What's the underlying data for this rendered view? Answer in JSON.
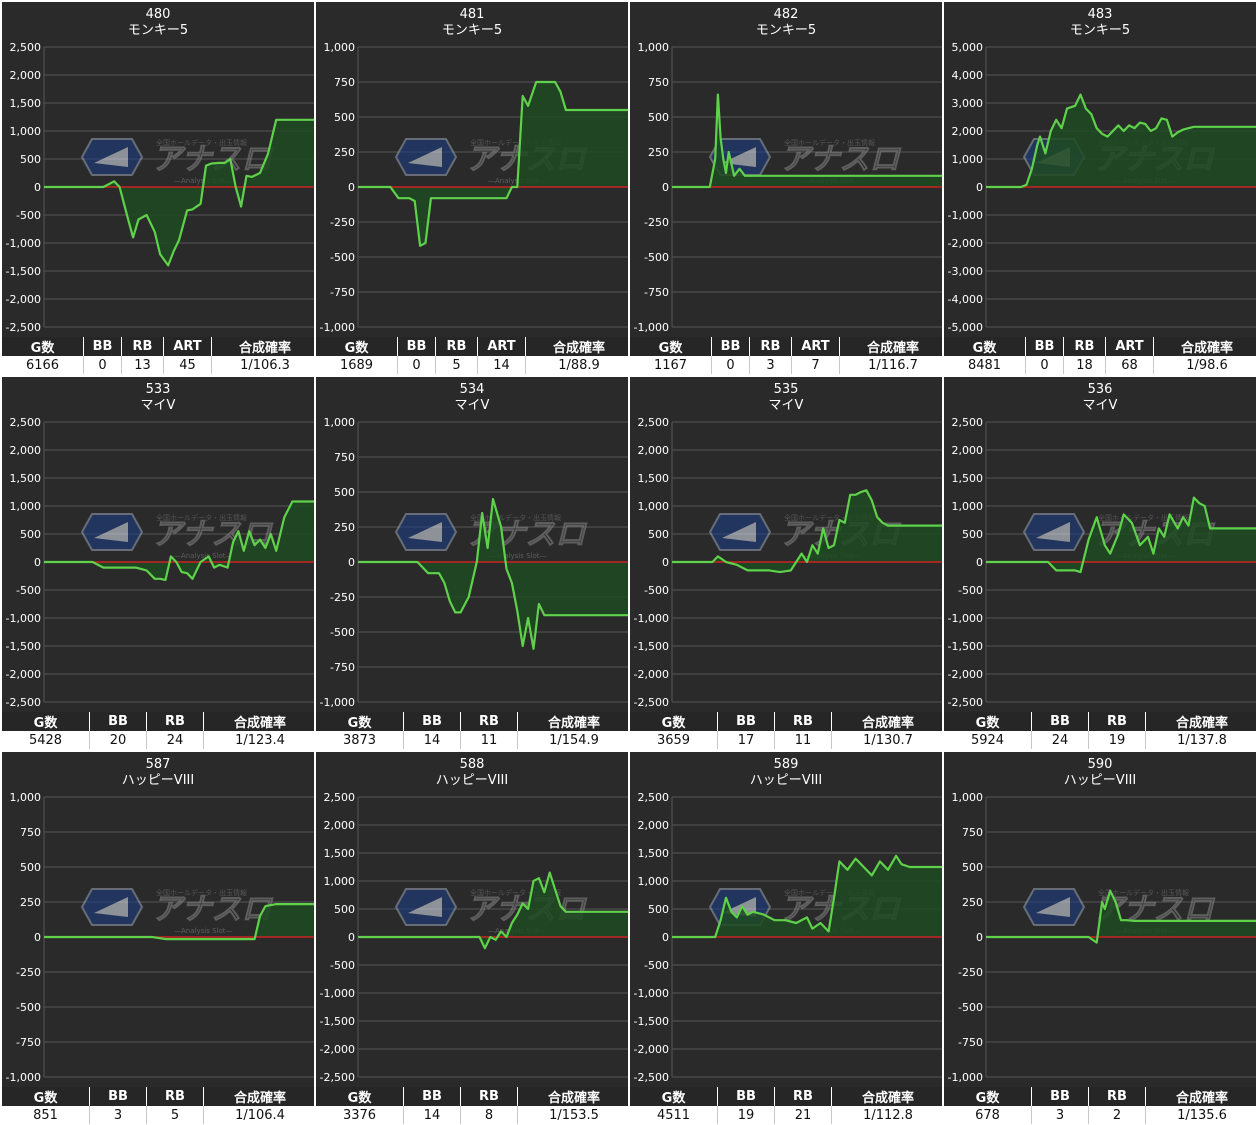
{
  "theme": {
    "background": "#2a2a2a",
    "grid": "#555555",
    "axis_text": "#ffffff",
    "zero_line": "#cc2222",
    "series_line": "#5fd14b",
    "series_fill": "#1f4a22",
    "header_bg": "#262626"
  },
  "watermark": {
    "logo_text": "アナスロ",
    "sub_text": "—Analysis Slot—",
    "top_text": "全国ホールデータ・出玉情報"
  },
  "machines": [
    {
      "title": "480",
      "subtitle": "モンキー5",
      "table": {
        "headers": [
          "G数",
          "BB",
          "RB",
          "ART",
          "合成確率"
        ],
        "values": [
          "6166",
          "0",
          "13",
          "45",
          "1/106.3"
        ]
      },
      "chart_data": {
        "type": "area",
        "ylim": [
          -2500,
          2500
        ],
        "yticks": [
          2500,
          2000,
          1500,
          1000,
          500,
          0,
          -500,
          -1000,
          -1500,
          -2000,
          -2500
        ],
        "x": [
          0,
          0.22,
          0.26,
          0.28,
          0.31,
          0.33,
          0.35,
          0.38,
          0.41,
          0.43,
          0.46,
          0.48,
          0.5,
          0.53,
          0.55,
          0.58,
          0.6,
          0.62,
          0.65,
          0.67,
          0.69,
          0.71,
          0.73,
          0.75,
          0.77,
          0.8,
          0.83,
          0.86,
          1.0
        ],
        "y": [
          0,
          0,
          100,
          0,
          -550,
          -900,
          -580,
          -500,
          -800,
          -1200,
          -1400,
          -1150,
          -950,
          -420,
          -400,
          -300,
          380,
          420,
          430,
          430,
          500,
          0,
          -350,
          200,
          180,
          250,
          600,
          1200,
          1200
        ]
      }
    },
    {
      "title": "481",
      "subtitle": "モンキー5",
      "table": {
        "headers": [
          "G数",
          "BB",
          "RB",
          "ART",
          "合成確率"
        ],
        "values": [
          "1689",
          "0",
          "5",
          "14",
          "1/88.9"
        ]
      },
      "chart_data": {
        "type": "area",
        "ylim": [
          -1000,
          1000
        ],
        "yticks": [
          1000,
          750,
          500,
          250,
          0,
          -250,
          -500,
          -750,
          -1000
        ],
        "x": [
          0,
          0.12,
          0.15,
          0.19,
          0.21,
          0.23,
          0.25,
          0.27,
          0.55,
          0.57,
          0.59,
          0.61,
          0.63,
          0.66,
          0.68,
          0.7,
          0.73,
          0.75,
          0.77,
          0.79,
          1.0
        ],
        "y": [
          0,
          0,
          -80,
          -80,
          -100,
          -420,
          -400,
          -80,
          -80,
          0,
          0,
          650,
          580,
          750,
          750,
          750,
          750,
          680,
          550,
          550,
          550
        ]
      }
    },
    {
      "title": "482",
      "subtitle": "モンキー5",
      "table": {
        "headers": [
          "G数",
          "BB",
          "RB",
          "ART",
          "合成確率"
        ],
        "values": [
          "1167",
          "0",
          "3",
          "7",
          "1/116.7"
        ]
      },
      "chart_data": {
        "type": "area",
        "ylim": [
          -1000,
          1000
        ],
        "yticks": [
          1000,
          750,
          500,
          250,
          0,
          -250,
          -500,
          -750,
          -1000
        ],
        "x": [
          0,
          0.12,
          0.14,
          0.16,
          0.17,
          0.18,
          0.19,
          0.2,
          0.21,
          0.23,
          0.25,
          0.27,
          0.3,
          1.0
        ],
        "y": [
          0,
          0,
          0,
          200,
          660,
          350,
          200,
          100,
          250,
          80,
          130,
          80,
          80,
          80
        ]
      }
    },
    {
      "title": "483",
      "subtitle": "モンキー5",
      "table": {
        "headers": [
          "G数",
          "BB",
          "RB",
          "ART",
          "合成確率"
        ],
        "values": [
          "8481",
          "0",
          "18",
          "68",
          "1/98.6"
        ]
      },
      "chart_data": {
        "type": "area",
        "ylim": [
          -5000,
          5000
        ],
        "yticks": [
          5000,
          4000,
          3000,
          2000,
          1000,
          0,
          -1000,
          -2000,
          -3000,
          -4000,
          -5000
        ],
        "x": [
          0,
          0.13,
          0.15,
          0.17,
          0.19,
          0.2,
          0.21,
          0.22,
          0.24,
          0.26,
          0.28,
          0.3,
          0.33,
          0.35,
          0.37,
          0.39,
          0.41,
          0.43,
          0.45,
          0.47,
          0.49,
          0.51,
          0.53,
          0.55,
          0.57,
          0.59,
          0.61,
          0.63,
          0.65,
          0.67,
          0.69,
          0.71,
          0.73,
          0.75,
          0.77,
          0.8,
          0.85,
          1.0
        ],
        "y": [
          0,
          0,
          80,
          650,
          1500,
          1800,
          1500,
          1200,
          2000,
          2400,
          2100,
          2800,
          2900,
          3300,
          2800,
          2600,
          2100,
          1900,
          1800,
          2000,
          2200,
          2000,
          2200,
          2100,
          2300,
          2250,
          2000,
          2100,
          2450,
          2400,
          1800,
          1950,
          2050,
          2100,
          2150,
          2150,
          2150,
          2150
        ]
      }
    },
    {
      "title": "533",
      "subtitle": "マイV",
      "table": {
        "headers": [
          "G数",
          "BB",
          "RB",
          "合成確率"
        ],
        "values": [
          "5428",
          "20",
          "24",
          "1/123.4"
        ]
      },
      "chart_data": {
        "type": "area",
        "ylim": [
          -2500,
          2500
        ],
        "yticks": [
          2500,
          2000,
          1500,
          1000,
          500,
          0,
          -500,
          -1000,
          -1500,
          -2000,
          -2500
        ],
        "x": [
          0,
          0.18,
          0.22,
          0.26,
          0.3,
          0.34,
          0.38,
          0.41,
          0.43,
          0.45,
          0.47,
          0.49,
          0.51,
          0.53,
          0.55,
          0.58,
          0.61,
          0.63,
          0.65,
          0.68,
          0.7,
          0.72,
          0.74,
          0.76,
          0.78,
          0.8,
          0.82,
          0.84,
          0.86,
          0.89,
          0.92,
          1.0
        ],
        "y": [
          0,
          0,
          -100,
          -100,
          -100,
          -100,
          -150,
          -300,
          -300,
          -320,
          100,
          0,
          -180,
          -200,
          -300,
          0,
          100,
          -100,
          -50,
          -100,
          350,
          550,
          200,
          550,
          300,
          400,
          250,
          500,
          200,
          800,
          1080,
          1080
        ]
      }
    },
    {
      "title": "534",
      "subtitle": "マイV",
      "table": {
        "headers": [
          "G数",
          "BB",
          "RB",
          "合成確率"
        ],
        "values": [
          "3873",
          "14",
          "11",
          "1/154.9"
        ]
      },
      "chart_data": {
        "type": "area",
        "ylim": [
          -1000,
          1000
        ],
        "yticks": [
          1000,
          750,
          500,
          250,
          0,
          -250,
          -500,
          -750,
          -1000
        ],
        "x": [
          0,
          0.2,
          0.22,
          0.26,
          0.3,
          0.32,
          0.34,
          0.36,
          0.38,
          0.41,
          0.44,
          0.46,
          0.48,
          0.5,
          0.53,
          0.55,
          0.57,
          0.59,
          0.61,
          0.63,
          0.65,
          0.67,
          0.69,
          0.72,
          0.75,
          1.0
        ],
        "y": [
          0,
          0,
          0,
          -80,
          -80,
          -150,
          -280,
          -360,
          -360,
          -250,
          0,
          350,
          100,
          450,
          250,
          -50,
          -150,
          -350,
          -600,
          -400,
          -620,
          -300,
          -380,
          -380,
          -380,
          -380
        ]
      }
    },
    {
      "title": "535",
      "subtitle": "マイV",
      "table": {
        "headers": [
          "G数",
          "BB",
          "RB",
          "合成確率"
        ],
        "values": [
          "3659",
          "17",
          "11",
          "1/130.7"
        ]
      },
      "chart_data": {
        "type": "area",
        "ylim": [
          -2500,
          2500
        ],
        "yticks": [
          2500,
          2000,
          1500,
          1000,
          500,
          0,
          -500,
          -1000,
          -1500,
          -2000,
          -2500
        ],
        "x": [
          0,
          0.15,
          0.17,
          0.2,
          0.24,
          0.28,
          0.32,
          0.36,
          0.4,
          0.44,
          0.46,
          0.48,
          0.5,
          0.52,
          0.54,
          0.56,
          0.58,
          0.6,
          0.62,
          0.64,
          0.66,
          0.68,
          0.7,
          0.72,
          0.74,
          0.76,
          0.78,
          0.8,
          0.85,
          1.0
        ],
        "y": [
          0,
          0,
          100,
          0,
          -50,
          -150,
          -150,
          -150,
          -180,
          -150,
          0,
          150,
          0,
          300,
          150,
          600,
          250,
          300,
          750,
          700,
          1200,
          1200,
          1250,
          1280,
          1100,
          800,
          700,
          650,
          650,
          650
        ]
      }
    },
    {
      "title": "536",
      "subtitle": "マイV",
      "table": {
        "headers": [
          "G数",
          "BB",
          "RB",
          "合成確率"
        ],
        "values": [
          "5924",
          "24",
          "19",
          "1/137.8"
        ]
      },
      "chart_data": {
        "type": "area",
        "ylim": [
          -2500,
          2500
        ],
        "yticks": [
          2500,
          2000,
          1500,
          1000,
          500,
          0,
          -500,
          -1000,
          -1500,
          -2000,
          -2500
        ],
        "x": [
          0,
          0.2,
          0.23,
          0.26,
          0.3,
          0.33,
          0.35,
          0.38,
          0.41,
          0.44,
          0.46,
          0.49,
          0.51,
          0.54,
          0.57,
          0.6,
          0.62,
          0.64,
          0.66,
          0.68,
          0.71,
          0.73,
          0.75,
          0.77,
          0.79,
          0.81,
          0.83,
          0.86,
          0.9,
          1.0
        ],
        "y": [
          0,
          0,
          0,
          -150,
          -150,
          -150,
          -180,
          400,
          800,
          300,
          150,
          500,
          850,
          700,
          300,
          450,
          150,
          600,
          450,
          850,
          600,
          800,
          650,
          1150,
          1050,
          1000,
          600,
          600,
          600,
          600
        ]
      }
    },
    {
      "title": "587",
      "subtitle": "ハッピーVIII",
      "table": {
        "headers": [
          "G数",
          "BB",
          "RB",
          "合成確率"
        ],
        "values": [
          "851",
          "3",
          "5",
          "1/106.4"
        ]
      },
      "chart_data": {
        "type": "area",
        "ylim": [
          -1000,
          1000
        ],
        "yticks": [
          1000,
          750,
          500,
          250,
          0,
          -250,
          -500,
          -750,
          -1000
        ],
        "x": [
          0,
          0.4,
          0.45,
          0.5,
          0.55,
          0.6,
          0.65,
          0.7,
          0.78,
          0.8,
          0.82,
          0.86,
          1.0
        ],
        "y": [
          0,
          0,
          -15,
          -15,
          -15,
          -15,
          -15,
          -15,
          -15,
          150,
          220,
          235,
          235
        ]
      }
    },
    {
      "title": "588",
      "subtitle": "ハッピーVIII",
      "table": {
        "headers": [
          "G数",
          "BB",
          "RB",
          "合成確率"
        ],
        "values": [
          "3376",
          "14",
          "8",
          "1/153.5"
        ]
      },
      "chart_data": {
        "type": "area",
        "ylim": [
          -2500,
          2500
        ],
        "yticks": [
          2500,
          2000,
          1500,
          1000,
          500,
          0,
          -500,
          -1000,
          -1500,
          -2000,
          -2500
        ],
        "x": [
          0,
          0.45,
          0.47,
          0.49,
          0.51,
          0.53,
          0.55,
          0.57,
          0.59,
          0.61,
          0.63,
          0.65,
          0.67,
          0.69,
          0.71,
          0.73,
          0.75,
          0.77,
          0.79,
          0.81,
          0.85,
          1.0
        ],
        "y": [
          0,
          0,
          -200,
          0,
          -50,
          100,
          0,
          250,
          400,
          600,
          500,
          1000,
          1050,
          800,
          1150,
          850,
          550,
          450,
          450,
          450,
          450,
          450
        ]
      }
    },
    {
      "title": "589",
      "subtitle": "ハッピーVIII",
      "table": {
        "headers": [
          "G数",
          "BB",
          "RB",
          "合成確率"
        ],
        "values": [
          "4511",
          "19",
          "21",
          "1/112.8"
        ]
      },
      "chart_data": {
        "type": "area",
        "ylim": [
          -2500,
          2500
        ],
        "yticks": [
          2500,
          2000,
          1500,
          1000,
          500,
          0,
          -500,
          -1000,
          -1500,
          -2000,
          -2500
        ],
        "x": [
          0,
          0.16,
          0.18,
          0.2,
          0.22,
          0.24,
          0.26,
          0.28,
          0.3,
          0.34,
          0.38,
          0.42,
          0.46,
          0.5,
          0.52,
          0.55,
          0.58,
          0.6,
          0.62,
          0.65,
          0.68,
          0.71,
          0.74,
          0.77,
          0.8,
          0.83,
          0.85,
          0.88,
          1.0
        ],
        "y": [
          0,
          0,
          300,
          700,
          450,
          350,
          550,
          400,
          450,
          400,
          300,
          300,
          250,
          350,
          150,
          250,
          100,
          700,
          1350,
          1200,
          1400,
          1250,
          1100,
          1350,
          1200,
          1450,
          1300,
          1250,
          1250
        ]
      }
    },
    {
      "title": "590",
      "subtitle": "ハッピーVIII",
      "table": {
        "headers": [
          "G数",
          "BB",
          "RB",
          "合成確率"
        ],
        "values": [
          "678",
          "3",
          "2",
          "1/135.6"
        ]
      },
      "chart_data": {
        "type": "area",
        "ylim": [
          -1000,
          1000
        ],
        "yticks": [
          1000,
          750,
          500,
          250,
          0,
          -250,
          -500,
          -750,
          -1000
        ],
        "x": [
          0,
          0.38,
          0.41,
          0.43,
          0.44,
          0.46,
          0.48,
          0.5,
          0.52,
          0.55,
          1.0
        ],
        "y": [
          0,
          0,
          -40,
          250,
          200,
          330,
          250,
          120,
          120,
          115,
          115
        ]
      }
    }
  ]
}
